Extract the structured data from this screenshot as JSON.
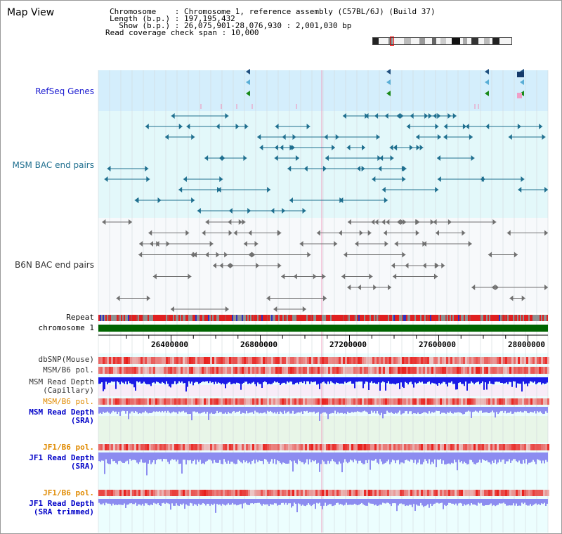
{
  "window": {
    "title": "Map View"
  },
  "info": {
    "line1": "Chromosome    : Chromosome 1, reference assembly (C57BL/6J) (Build 37)",
    "line2": "Length (b.p.) : 197,195,432",
    "line3": "  Show (b.p.) : 26,075,901-28,076,930 : 2,001,030 bp",
    "line4": "Read coverage check span : 10,000"
  },
  "tracks": {
    "refseq": "RefSeq Genes",
    "msm_bac": "MSM BAC end pairs",
    "b6n_bac": "B6N BAC end pairs",
    "repeat": "Repeat",
    "chromosome": "chromosome 1",
    "dbsnp": "dbSNP(Mouse)",
    "msm_b6_pol": "MSM/B6 pol.",
    "msm_depth_cap_1": "MSM Read Depth",
    "msm_depth_cap_2": "(Capillary)",
    "msm_b6_pol2": "MSM/B6 pol.",
    "msm_depth_sra_1": "MSM Read Depth",
    "msm_depth_sra_2": "(SRA)",
    "jf1_pol": "JF1/B6 pol.",
    "jf1_depth_1": "JF1 Read Depth",
    "jf1_depth_2": "(SRA)",
    "jf1_pol2": "JF1/B6 pol.",
    "jf1_trim_1": "JF1 Read Depth",
    "jf1_trim_2": "(SRA trimmed)"
  },
  "axis": {
    "ticks": [
      "26400000",
      "26800000",
      "27200000",
      "27600000",
      "28000000"
    ]
  },
  "colors": {
    "refseq_bg": "#d4eefc",
    "bac_bg": "#e3f8fa",
    "plot_bg": "#ecfefe",
    "chromosome": "#006400",
    "snp": "#e8201c",
    "depth_cap": "#1a1ae6",
    "depth_sra": "#8c8cf0",
    "bac_teal": "#1f6f8f",
    "bac_gray": "#707070"
  }
}
